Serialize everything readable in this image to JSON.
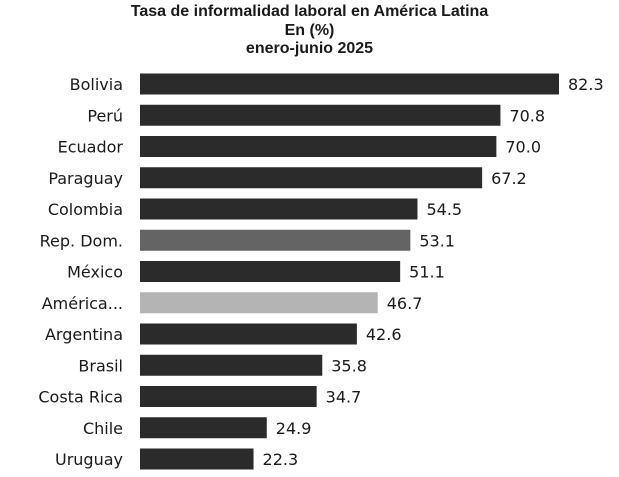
{
  "chart_data": {
    "type": "bar",
    "orientation": "horizontal",
    "title": "Tasa de informalidad laboral en América Latina",
    "subtitle_lines": [
      "En (%)",
      "enero-junio 2025"
    ],
    "categories": [
      "Bolivia",
      "Perú",
      "Ecuador",
      "Paraguay",
      "Colombia",
      "Rep. Dom.",
      "México",
      "América...",
      "Argentina",
      "Brasil",
      "Costa Rica",
      "Chile",
      "Uruguay"
    ],
    "values": [
      82.3,
      70.8,
      70.0,
      67.2,
      54.5,
      53.1,
      51.1,
      46.7,
      42.6,
      35.8,
      34.7,
      24.9,
      22.3
    ],
    "value_labels": [
      "82.3",
      "70.8",
      "70.0",
      "67.2",
      "54.5",
      "53.1",
      "51.1",
      "46.7",
      "42.6",
      "35.8",
      "34.7",
      "24.9",
      "22.3"
    ],
    "bar_colors": [
      "#2b2b2b",
      "#2b2b2b",
      "#2b2b2b",
      "#2b2b2b",
      "#2b2b2b",
      "#646464",
      "#2b2b2b",
      "#b4b4b4",
      "#2b2b2b",
      "#2b2b2b",
      "#2b2b2b",
      "#2b2b2b",
      "#2b2b2b"
    ],
    "xlim": [
      0,
      82.3
    ],
    "grid": false,
    "legend": "none"
  }
}
